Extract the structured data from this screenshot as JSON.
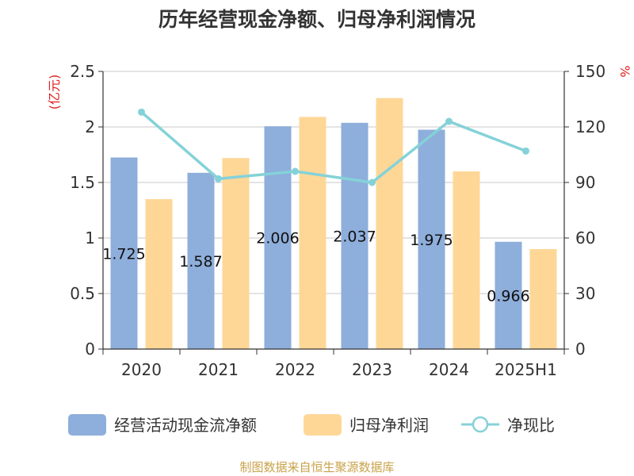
{
  "title": "历年经营现金净额、归母净利润情况",
  "source": "制图数据来自恒生聚源数据库",
  "left_axis_unit": "(亿元)",
  "right_axis_unit": "%",
  "colors": {
    "cash_bar": "#8eaedb",
    "profit_bar": "#fed797",
    "ratio_line": "#84d2d8",
    "unit": "#e02020",
    "source": "#c9a24a"
  },
  "legend": [
    {
      "name": "经营活动现金流净额",
      "kind": "bar"
    },
    {
      "name": "归母净利润",
      "kind": "bar"
    },
    {
      "name": "净现比",
      "kind": "line"
    }
  ],
  "chart_data": {
    "type": "bar",
    "categories": [
      "2020",
      "2021",
      "2022",
      "2023",
      "2024",
      "2025H1"
    ],
    "series": [
      {
        "name": "经营活动现金流净额",
        "axis": "left",
        "type": "bar",
        "values": [
          1.725,
          1.587,
          2.006,
          2.037,
          1.975,
          0.966
        ]
      },
      {
        "name": "归母净利润",
        "axis": "left",
        "type": "bar",
        "values": [
          1.35,
          1.72,
          2.09,
          2.26,
          1.6,
          0.9
        ]
      },
      {
        "name": "净现比",
        "axis": "right",
        "type": "line",
        "values": [
          128,
          92,
          96,
          90,
          123,
          107
        ]
      }
    ],
    "data_labels": [
      "1.725",
      "1.587",
      "2.006",
      "2.037",
      "1.975",
      "0.966"
    ],
    "y_left": {
      "min": 0,
      "max": 2.5,
      "ticks": [
        "0",
        "0.5",
        "1",
        "1.5",
        "2",
        "2.5"
      ]
    },
    "y_right": {
      "min": 0,
      "max": 150,
      "ticks": [
        "0",
        "30",
        "60",
        "90",
        "120",
        "150"
      ]
    },
    "grid": true,
    "legend_position": "bottom"
  }
}
